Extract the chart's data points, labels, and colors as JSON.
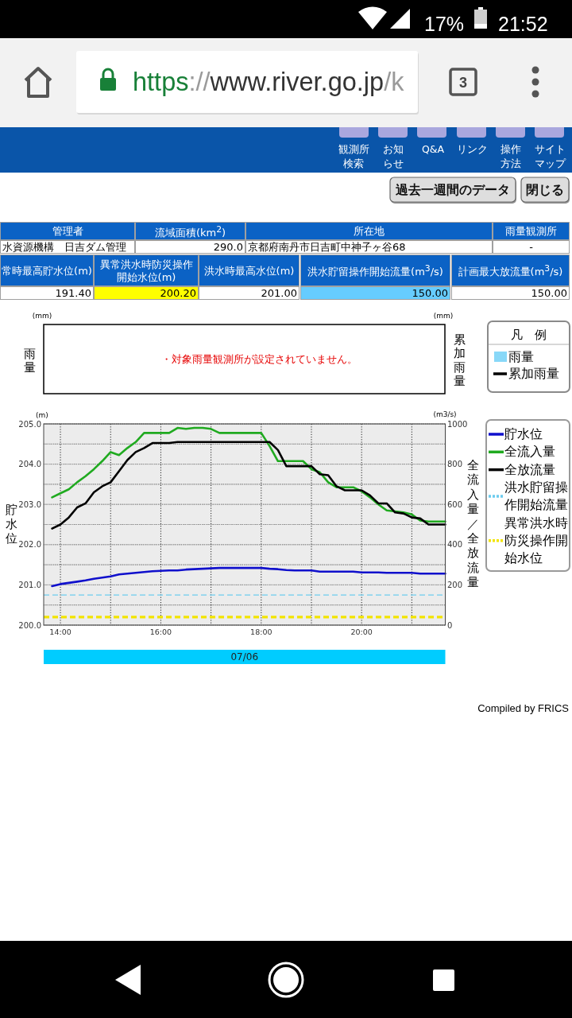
{
  "chart_data": [
    {
      "type": "other",
      "annotations": [
        "17%",
        "21:52",
        "https",
        "://",
        "www.river.go.jp",
        "/k",
        "3"
      ]
    },
    {
      "type": "other",
      "annotations": [
        "観測所検索",
        "お知らせ",
        "Q&A",
        "リンク",
        "操作方法",
        "サイトマップ",
        "過去一週間のデータ",
        "閉じる"
      ]
    },
    {
      "type": "other",
      "annotations": [
        "管理者",
        "流域面積(km$^{2}$)",
        "所在地",
        "雨量観測所",
        "水資源機構　日吉ダム管理",
        "290.0",
        "京都府南丹市日吉町中神子ヶ谷68",
        "-",
        "常時最高貯水位(m)",
        "異常洪水時防災操作開始水位(m)",
        "洪水時最高水位(m)",
        "洪水貯留操作開始流量(m$^{3}$/s)",
        "計画最大放流量(m$^{3}$/s)",
        "191.40",
        "200.20",
        "201.00",
        "150.00",
        "150.00"
      ]
    },
    {
      "type": "other",
      "ylabel": "雨量",
      "y2label": "累加雨量",
      "legend_title": "凡　例",
      "legend": "right",
      "annotations": [
        "(mm)",
        "(mm)",
        "・対象雨量観測所が設定されていません。"
      ],
      "series": [
        {
          "name": "雨量",
          "type": "bar",
          "color": "#88d8f8"
        },
        {
          "name": "累加雨量",
          "type": "line",
          "color": "#000000"
        }
      ]
    },
    {
      "type": "line",
      "ylabel": "貯水位",
      "y2label": "全流入量／全放流量",
      "annotations": [
        "(m)",
        "(m3/s)",
        "07/06",
        "Compiled by FRICS"
      ],
      "x": [
        13.8333,
        14,
        14.1667,
        14.3333,
        14.5,
        14.6667,
        14.8333,
        15,
        15.1667,
        15.3333,
        15.5,
        15.6667,
        15.8333,
        16,
        16.1667,
        16.3333,
        16.5,
        16.6667,
        16.8333,
        17,
        17.1667,
        17.3333,
        17.5,
        17.6667,
        17.8333,
        18,
        18.1667,
        18.3333,
        18.5,
        18.6667,
        18.8333,
        19,
        19.1667,
        19.3333,
        19.5,
        19.6667,
        19.8333,
        20,
        20.1667,
        20.3333,
        20.5,
        20.6667,
        20.8333,
        21,
        21.1667,
        21.3333,
        21.5,
        21.6667
      ],
      "xlim": [
        13.6667,
        21.6667
      ],
      "xticks": [
        {
          "value": 14,
          "label": "14:00"
        },
        {
          "value": 15,
          "label": null
        },
        {
          "value": 16,
          "label": "16:00"
        },
        {
          "value": 17,
          "label": null
        },
        {
          "value": 18,
          "label": "18:00"
        },
        {
          "value": 19,
          "label": null
        },
        {
          "value": 20,
          "label": "20:00"
        },
        {
          "value": 21,
          "label": null
        }
      ],
      "ylim": [
        200,
        205
      ],
      "yticks": [
        {
          "value": 200,
          "label": "200.0"
        },
        {
          "value": 200.5,
          "label": null
        },
        {
          "value": 201,
          "label": "201.0"
        },
        {
          "value": 201.5,
          "label": null
        },
        {
          "value": 202,
          "label": "202.0"
        },
        {
          "value": 202.5,
          "label": null
        },
        {
          "value": 203,
          "label": "203.0"
        },
        {
          "value": 203.5,
          "label": null
        },
        {
          "value": 204,
          "label": "204.0"
        },
        {
          "value": 204.5,
          "label": null
        },
        {
          "value": 205,
          "label": "205.0"
        }
      ],
      "y2lim": [
        0,
        1000
      ],
      "y2ticks": [
        0,
        {
          "value": 100,
          "label": null
        },
        200,
        {
          "value": 300,
          "label": null
        },
        400,
        {
          "value": 500,
          "label": null
        },
        600,
        {
          "value": 700,
          "label": null
        },
        800,
        {
          "value": 900,
          "label": null
        },
        1000
      ],
      "series": [
        {
          "name": "貯水位",
          "color": "#1010cc",
          "values": [
            200.97,
            201.02,
            201.05,
            201.08,
            201.11,
            201.15,
            201.18,
            201.21,
            201.26,
            201.28,
            201.3,
            201.32,
            201.34,
            201.35,
            201.36,
            201.36,
            201.38,
            201.39,
            201.4,
            201.41,
            201.42,
            201.42,
            201.42,
            201.42,
            201.42,
            201.42,
            201.4,
            201.39,
            201.37,
            201.36,
            201.36,
            201.36,
            201.33,
            201.33,
            201.33,
            201.33,
            201.33,
            201.31,
            201.31,
            201.31,
            201.3,
            201.3,
            201.3,
            201.3,
            201.28,
            201.28,
            201.28,
            201.28
          ]
        },
        {
          "name": "全流入量",
          "color": "#20aa20",
          "axis": "y2",
          "values": [
            635,
            655,
            675,
            710,
            740,
            775,
            815,
            860,
            845,
            880,
            910,
            955,
            955,
            955,
            955,
            980,
            975,
            980,
            980,
            975,
            955,
            955,
            955,
            955,
            955,
            955,
            890,
            815,
            815,
            815,
            815,
            775,
            760,
            710,
            685,
            685,
            685,
            665,
            635,
            600,
            570,
            565,
            560,
            550,
            520,
            515,
            515,
            515
          ]
        },
        {
          "name": "全放流量",
          "color": "#000000",
          "axis": "y2",
          "values": [
            480,
            500,
            535,
            585,
            605,
            660,
            690,
            710,
            765,
            820,
            860,
            880,
            905,
            905,
            905,
            910,
            910,
            910,
            910,
            910,
            910,
            910,
            910,
            910,
            910,
            910,
            910,
            870,
            790,
            790,
            790,
            790,
            750,
            745,
            690,
            670,
            670,
            670,
            645,
            605,
            605,
            560,
            555,
            535,
            530,
            500,
            500,
            500
          ]
        }
      ],
      "ref_lines": [
        {
          "axis": "y2",
          "value": 150,
          "label": "洪水貯留操作開始流量",
          "color": "#6ccbee",
          "line_style": "dashed"
        },
        {
          "axis": "y",
          "value": 200.2,
          "label": "異常洪水時防災操作開始水位",
          "color": "#f2e400",
          "line_style": "dashed"
        }
      ],
      "grid": true,
      "legend": "right"
    }
  ]
}
